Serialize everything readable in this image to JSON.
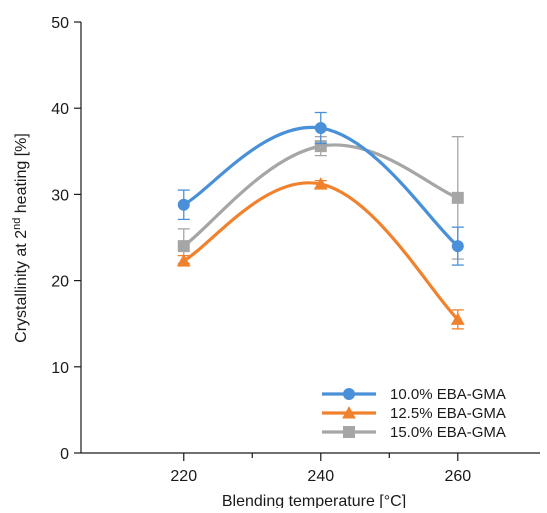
{
  "chart_data": {
    "type": "line",
    "x": [
      220,
      240,
      260
    ],
    "xlabel": "Blending temperature [°C]",
    "ylabel_main": "Crystallinity at 2",
    "ylabel_sup": "nd",
    "ylabel_tail": " heating [%]",
    "xlim": [
      205,
      272
    ],
    "ylim": [
      0,
      50
    ],
    "xticks": [
      220,
      240,
      260
    ],
    "xminor": [
      230,
      250
    ],
    "yticks": [
      0,
      10,
      20,
      30,
      40,
      50
    ],
    "grid": false,
    "legend_position": "bottom-right",
    "series": [
      {
        "name": "10.0% EBA-GMA",
        "color": "#4a90d9",
        "marker": "circle",
        "values": [
          28.8,
          37.7,
          24.0
        ],
        "error": [
          1.7,
          1.8,
          2.2
        ]
      },
      {
        "name": "12.5% EBA-GMA",
        "color": "#f0822e",
        "marker": "triangle",
        "values": [
          22.3,
          31.2,
          15.5
        ],
        "error": [
          0.6,
          0.4,
          1.1
        ]
      },
      {
        "name": "15.0% EBA-GMA",
        "color": "#a6a6a6",
        "marker": "square",
        "values": [
          24.0,
          35.6,
          29.6
        ],
        "error": [
          2.0,
          1.1,
          7.1
        ]
      }
    ]
  }
}
